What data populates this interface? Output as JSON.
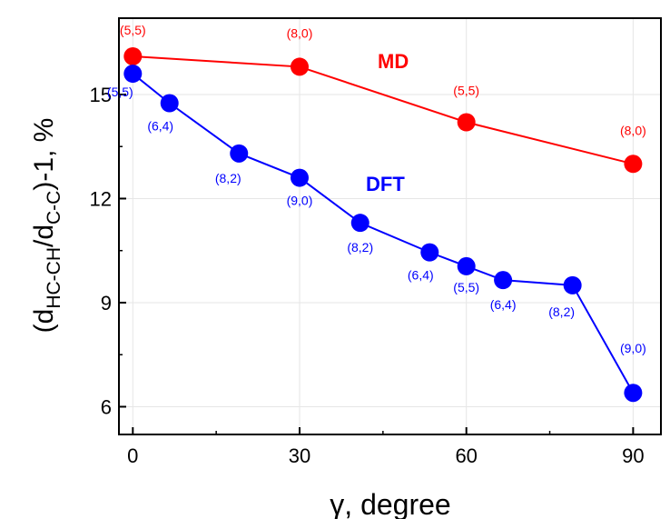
{
  "chart_data": {
    "type": "line",
    "xlabel": "γ, degree",
    "ylabel": {
      "prefix": "(d",
      "sub1": "HC-CH",
      "mid": "/d",
      "sub2": "C-C",
      "suffix": ")-1, %"
    },
    "xlim": [
      -2.5,
      95
    ],
    "ylim": [
      5.2,
      17.2
    ],
    "x_ticks": [
      0,
      30,
      60,
      90
    ],
    "y_ticks": [
      6,
      9,
      12,
      15
    ],
    "grid": true,
    "series": [
      {
        "name": "MD",
        "color": "#ff0000",
        "x": [
          0,
          30,
          60,
          90
        ],
        "y": [
          16.1,
          15.8,
          14.2,
          13.0
        ],
        "labels": [
          "(5,5)",
          "(8,0)",
          "(5,5)",
          "(8,0)"
        ]
      },
      {
        "name": "DFT",
        "color": "#0000ff",
        "x": [
          0,
          6.6,
          19.1,
          30,
          40.9,
          53.4,
          60,
          66.6,
          79.1,
          90
        ],
        "y": [
          15.6,
          14.75,
          13.3,
          12.6,
          11.3,
          10.45,
          10.05,
          9.65,
          9.5,
          6.4
        ],
        "labels": [
          "(5,5)",
          "(6,4)",
          "(8,2)",
          "(9,0)",
          "(8,2)",
          "(6,4)",
          "(5,5)",
          "(6,4)",
          "(8,2)",
          "(9,0)"
        ]
      }
    ]
  }
}
